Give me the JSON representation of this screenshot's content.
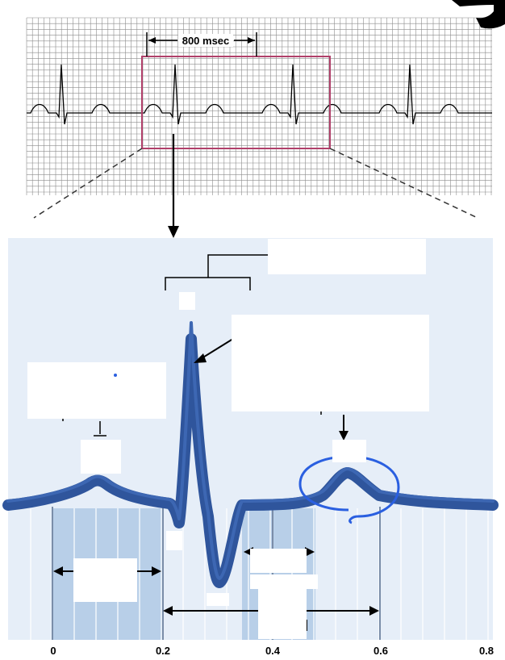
{
  "top_strip": {
    "scale_label": "800 msec"
  },
  "x_axis": {
    "tick_labels": [
      "0",
      "0.2",
      "0.4",
      "0.6",
      "0.8"
    ],
    "range": [
      0,
      0.8
    ]
  },
  "colors": {
    "grid_line": "#8c8c8c",
    "highlight_box": "#b0406a",
    "panel_background": "#e6eef8",
    "shaded_band": "#b8cfe8",
    "waveform": "#2f559c",
    "annotation_circle": "#2a5fe0",
    "label_box": "#ffffff"
  }
}
